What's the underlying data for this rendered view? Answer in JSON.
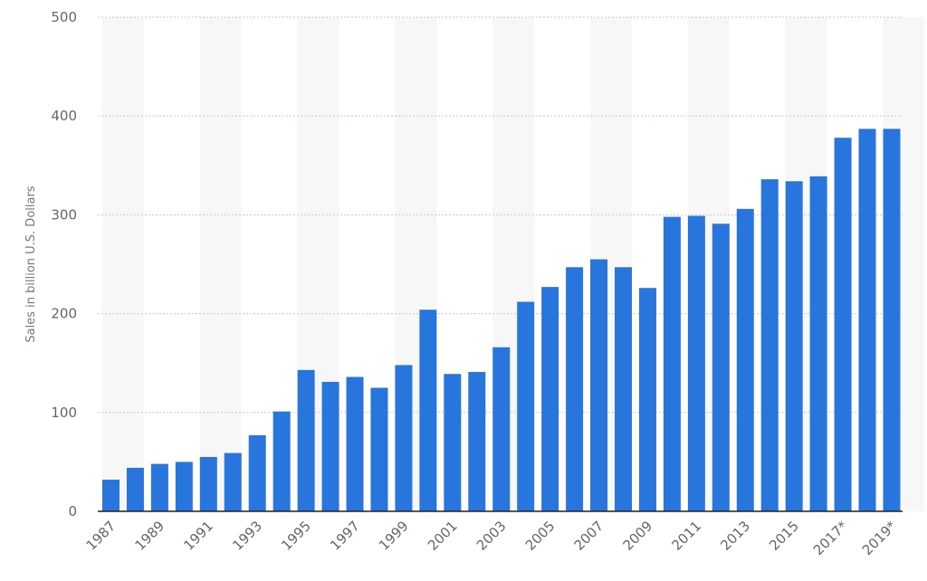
{
  "chart_data": {
    "type": "bar",
    "title": "",
    "xlabel": "",
    "ylabel": "Sales in billion U.S. Dollars",
    "ylim": [
      0,
      500
    ],
    "yticks": [
      0,
      100,
      200,
      300,
      400,
      500
    ],
    "grid": true,
    "categories": [
      "1987",
      "1988",
      "1989",
      "1990",
      "1991",
      "1992",
      "1993",
      "1994",
      "1995",
      "1996",
      "1997",
      "1998",
      "1999",
      "2000",
      "2001",
      "2002",
      "2003",
      "2004",
      "2005",
      "2006",
      "2007",
      "2008",
      "2009",
      "2010",
      "2011",
      "2012",
      "2013",
      "2014",
      "2015",
      "2016",
      "2017*",
      "2018*",
      "2019*"
    ],
    "xtick_labels": [
      "1987",
      "1989",
      "1991",
      "1993",
      "1995",
      "1997",
      "1999",
      "2001",
      "2003",
      "2005",
      "2007",
      "2009",
      "2011",
      "2013",
      "2015",
      "2017*",
      "2019*"
    ],
    "values": [
      32,
      44,
      48,
      50,
      55,
      59,
      77,
      101,
      143,
      131,
      136,
      125,
      148,
      204,
      139,
      141,
      166,
      212,
      227,
      247,
      255,
      247,
      226,
      298,
      299,
      291,
      306,
      336,
      334,
      339,
      378,
      387,
      387
    ],
    "bar_color": "#2876dd"
  }
}
